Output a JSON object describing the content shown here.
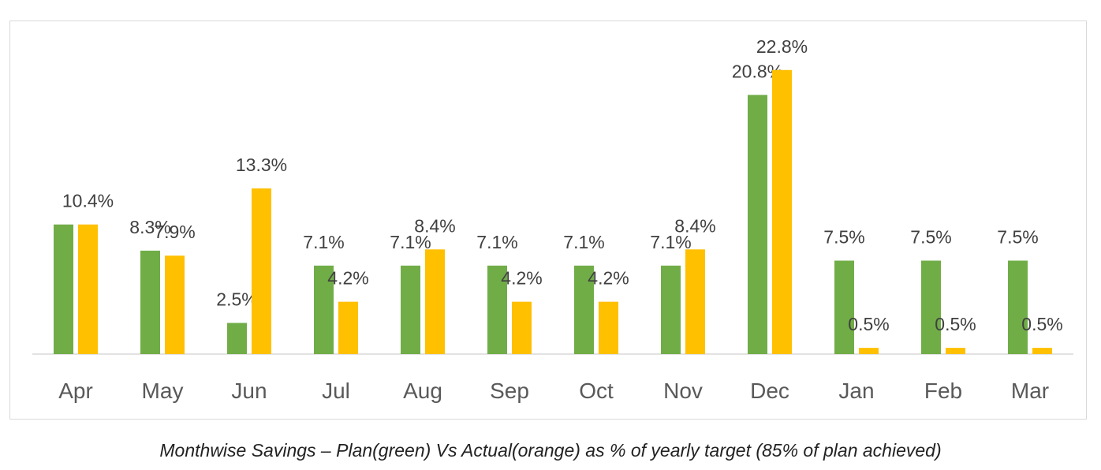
{
  "chart_data": {
    "type": "bar",
    "categories": [
      "Apr",
      "May",
      "Jun",
      "Jul",
      "Aug",
      "Sep",
      "Oct",
      "Nov",
      "Dec",
      "Jan",
      "Feb",
      "Mar"
    ],
    "series": [
      {
        "color": "#70ad47",
        "values": [
          10.4,
          8.3,
          2.5,
          7.1,
          7.1,
          7.1,
          7.1,
          7.1,
          20.8,
          7.5,
          7.5,
          7.5
        ],
        "labels": [
          "",
          "8.3%",
          "2.5%",
          "7.1%",
          "7.1%",
          "7.1%",
          "7.1%",
          "7.1%",
          "20.8%",
          "7.5%",
          "7.5%",
          "7.5%"
        ]
      },
      {
        "color": "#ffc000",
        "values": [
          10.4,
          7.9,
          13.3,
          4.2,
          8.4,
          4.2,
          4.2,
          8.4,
          22.8,
          0.5,
          0.5,
          0.5
        ],
        "labels": [
          "10.4%",
          "7.9%",
          "13.3%",
          "4.2%",
          "8.4%",
          "4.2%",
          "4.2%",
          "8.4%",
          "22.8%",
          "0.5%",
          "0.5%",
          "0.5%"
        ]
      }
    ],
    "ylim": [
      0,
      26
    ],
    "grid": false,
    "legend": "none",
    "value_unit": "%"
  },
  "caption": "Monthwise Savings – Plan(green) Vs Actual(orange) as % of yearly target (85% of plan achieved)"
}
